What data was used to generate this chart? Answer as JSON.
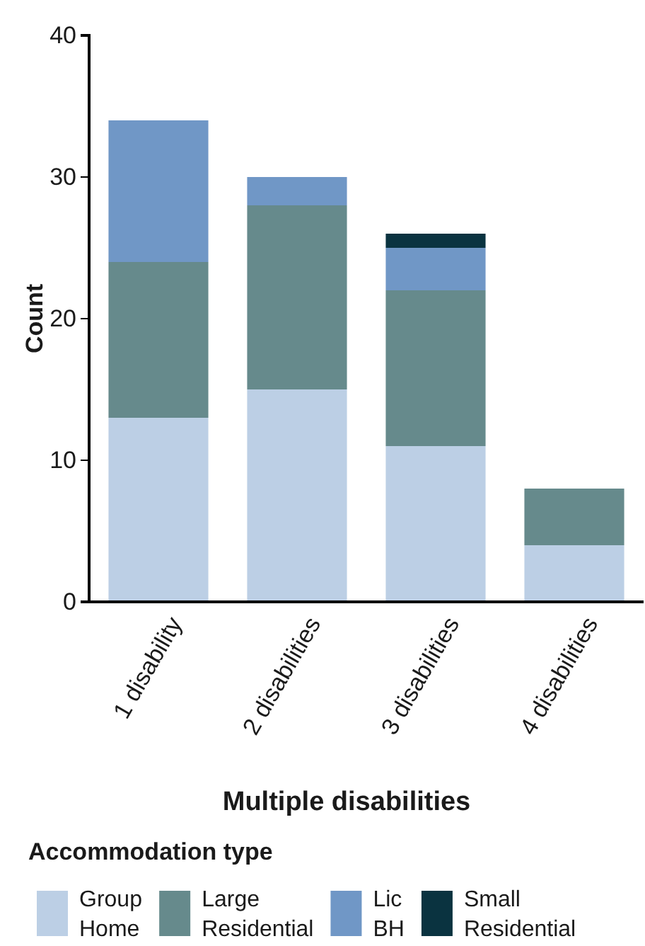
{
  "chart_data": {
    "type": "bar",
    "stacked": true,
    "xlabel": "Multiple disabilities",
    "ylabel": "Count",
    "legend_title": "Accommodation type",
    "legend": "bottom",
    "categories": [
      "1 disability",
      "2 disabilities",
      "3 disabilities",
      "4 disabilities"
    ],
    "series": [
      {
        "name": "Group Home",
        "color": "#bccfe5",
        "values": [
          13,
          15,
          11,
          4
        ]
      },
      {
        "name": "Large Residential",
        "color": "#668a8c",
        "values": [
          11,
          13,
          11,
          4
        ]
      },
      {
        "name": "Lic BH",
        "color": "#7097c6",
        "values": [
          10,
          2,
          3,
          0
        ]
      },
      {
        "name": "Small Residential",
        "color": "#0a3340",
        "values": [
          0,
          0,
          1,
          0
        ]
      }
    ],
    "ylim": [
      0,
      40
    ],
    "yticks": [
      0,
      10,
      20,
      30,
      40
    ],
    "grid": false
  }
}
